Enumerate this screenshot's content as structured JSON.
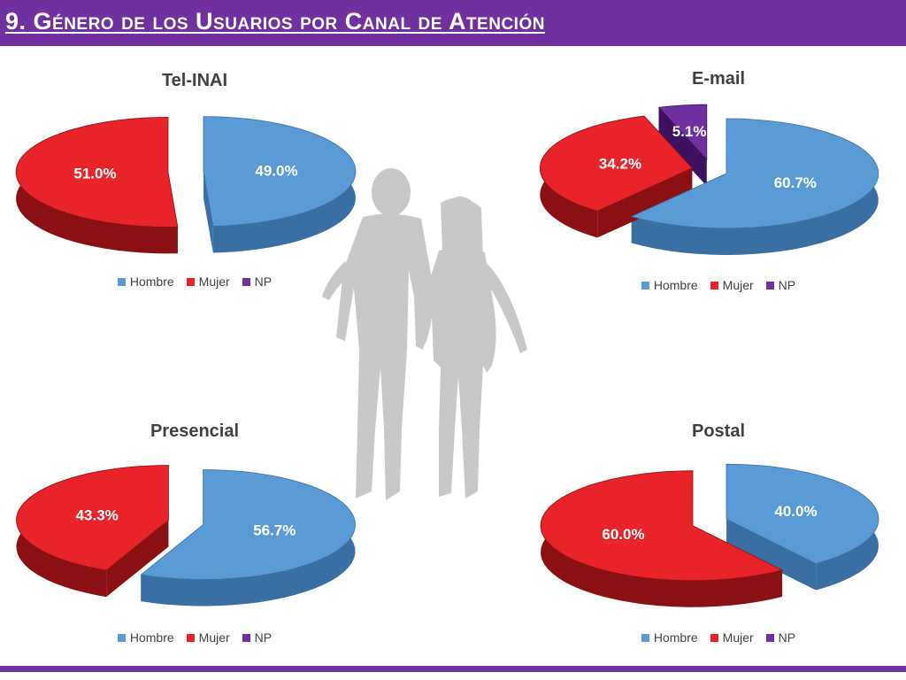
{
  "header": {
    "title": "9. Género de los Usuarios por Canal de Atención"
  },
  "colors": {
    "header": "#7030a0",
    "hombre": "#5b9bd5",
    "hombre_side": "#3a6fa3",
    "mujer": "#e8232a",
    "mujer_side": "#8b1013",
    "np": "#7030a0",
    "np_side": "#3d1060"
  },
  "legend": {
    "hombre": "Hombre",
    "mujer": "Mujer",
    "np": "NP"
  },
  "chart_data": [
    {
      "type": "pie",
      "title": "Tel-INAI",
      "categories": [
        "Hombre",
        "Mujer",
        "NP"
      ],
      "values": [
        49.0,
        51.0,
        0
      ],
      "labels": [
        "49.0%",
        "51.0%",
        ""
      ]
    },
    {
      "type": "pie",
      "title": "E-mail",
      "categories": [
        "Hombre",
        "Mujer",
        "NP"
      ],
      "values": [
        60.7,
        34.2,
        5.1
      ],
      "labels": [
        "60.7%",
        "34.2%",
        "5.1%"
      ]
    },
    {
      "type": "pie",
      "title": "Presencial",
      "categories": [
        "Hombre",
        "Mujer",
        "NP"
      ],
      "values": [
        56.7,
        43.3,
        0
      ],
      "labels": [
        "56.7%",
        "43.3%",
        ""
      ]
    },
    {
      "type": "pie",
      "title": "Postal",
      "categories": [
        "Hombre",
        "Mujer",
        "NP"
      ],
      "values": [
        40.0,
        60.0,
        0
      ],
      "labels": [
        "40.0%",
        "60.0%",
        ""
      ]
    }
  ]
}
